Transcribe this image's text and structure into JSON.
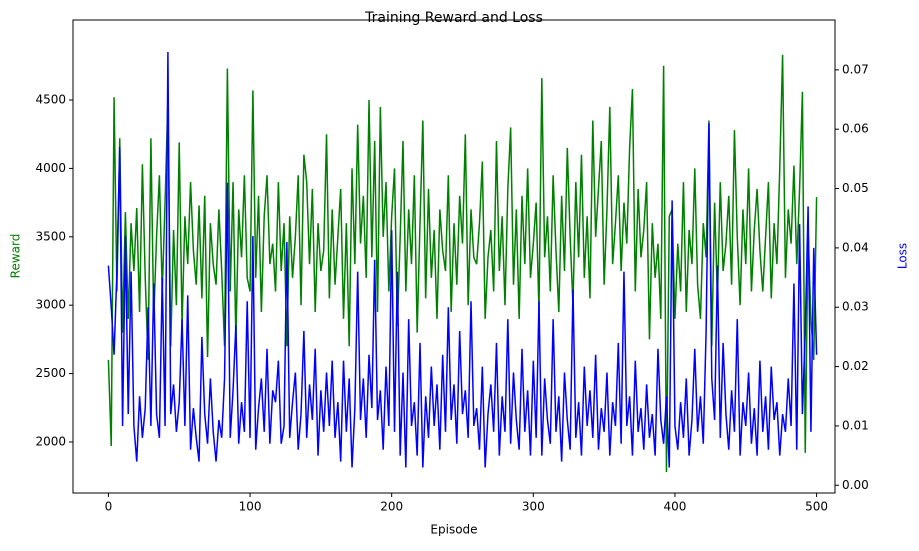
{
  "chart_data": {
    "type": "line",
    "title": "Training Reward and Loss",
    "xlabel": "Episode",
    "xlim": [
      -25,
      513
    ],
    "xticks": [
      0,
      100,
      200,
      300,
      400,
      500
    ],
    "ylim": [
      1627,
      5085
    ],
    "yticks": [
      2000,
      2500,
      3000,
      3500,
      4000,
      4500
    ],
    "y2lim": [
      -0.0013,
      0.0784
    ],
    "y2ticks": [
      {
        "value": 0,
        "label": "0.00"
      },
      {
        "value": 0.01,
        "label": "0.01"
      },
      {
        "value": 0.02,
        "label": "0.02"
      },
      {
        "value": 0.03,
        "label": "0.03"
      },
      {
        "value": 0.04,
        "label": "0.04"
      },
      {
        "value": 0.05,
        "label": "0.05"
      },
      {
        "value": 0.06,
        "label": "0.06"
      },
      {
        "value": 0.07,
        "label": "0.07"
      }
    ],
    "x": [
      0,
      2,
      4,
      6,
      8,
      10,
      12,
      14,
      16,
      18,
      20,
      22,
      24,
      26,
      28,
      30,
      32,
      34,
      36,
      38,
      40,
      42,
      44,
      46,
      48,
      50,
      52,
      54,
      56,
      58,
      60,
      62,
      64,
      66,
      68,
      70,
      72,
      74,
      76,
      78,
      80,
      82,
      84,
      86,
      88,
      90,
      92,
      94,
      96,
      98,
      100,
      102,
      104,
      106,
      108,
      110,
      112,
      114,
      116,
      118,
      120,
      122,
      124,
      126,
      128,
      130,
      132,
      134,
      136,
      138,
      140,
      142,
      144,
      146,
      148,
      150,
      152,
      154,
      156,
      158,
      160,
      162,
      164,
      166,
      168,
      170,
      172,
      174,
      176,
      178,
      180,
      182,
      184,
      186,
      188,
      190,
      192,
      194,
      196,
      198,
      200,
      202,
      204,
      206,
      208,
      210,
      212,
      214,
      216,
      218,
      220,
      222,
      224,
      226,
      228,
      230,
      232,
      234,
      236,
      238,
      240,
      242,
      244,
      246,
      248,
      250,
      252,
      254,
      256,
      258,
      260,
      262,
      264,
      266,
      268,
      270,
      272,
      274,
      276,
      278,
      280,
      282,
      284,
      286,
      288,
      290,
      292,
      294,
      296,
      298,
      300,
      302,
      304,
      306,
      308,
      310,
      312,
      314,
      316,
      318,
      320,
      322,
      324,
      326,
      328,
      330,
      332,
      334,
      336,
      338,
      340,
      342,
      344,
      346,
      348,
      350,
      352,
      354,
      356,
      358,
      360,
      362,
      364,
      366,
      368,
      370,
      372,
      374,
      376,
      378,
      380,
      382,
      384,
      386,
      388,
      390,
      392,
      394,
      396,
      398,
      400,
      402,
      404,
      406,
      408,
      410,
      412,
      414,
      416,
      418,
      420,
      422,
      424,
      426,
      428,
      430,
      432,
      434,
      436,
      438,
      440,
      442,
      444,
      446,
      448,
      450,
      452,
      454,
      456,
      458,
      460,
      462,
      464,
      466,
      468,
      470,
      472,
      474,
      476,
      478,
      480,
      482,
      484,
      486,
      488,
      490,
      492,
      494,
      496,
      498,
      500
    ],
    "series": [
      {
        "name": "Reward",
        "color": "#008000",
        "values": [
          2600,
          1970,
          4520,
          3100,
          4220,
          2800,
          3680,
          2900,
          3600,
          3250,
          3710,
          2950,
          4030,
          3200,
          2600,
          4220,
          2900,
          3500,
          3950,
          3100,
          3750,
          4500,
          2700,
          3550,
          3000,
          4190,
          2850,
          3650,
          3300,
          3900,
          3400,
          3150,
          3730,
          3050,
          3800,
          2620,
          3600,
          3300,
          3150,
          3700,
          3250,
          2700,
          4730,
          3100,
          3900,
          2750,
          3700,
          3350,
          3950,
          3200,
          3100,
          4570,
          3200,
          3800,
          2950,
          3650,
          3950,
          3300,
          3450,
          3100,
          3900,
          3250,
          3600,
          2700,
          3650,
          3200,
          3500,
          3950,
          3000,
          4100,
          3900,
          3300,
          3850,
          2950,
          3600,
          3250,
          3400,
          4250,
          3050,
          3700,
          3150,
          3500,
          3850,
          2900,
          3600,
          2700,
          4000,
          3300,
          4320,
          3450,
          3800,
          3200,
          4500,
          3350,
          4200,
          2950,
          4450,
          3500,
          3900,
          3100,
          3650,
          4000,
          2850,
          3500,
          4200,
          3100,
          3700,
          3300,
          3950,
          2800,
          3600,
          4350,
          3050,
          3850,
          3200,
          3550,
          2900,
          3700,
          3400,
          3250,
          3950,
          2950,
          3600,
          3150,
          3800,
          3450,
          4250,
          3000,
          3700,
          3350,
          3300,
          3600,
          4050,
          2900,
          3350,
          3550,
          3100,
          4200,
          3250,
          3650,
          3000,
          3850,
          4300,
          3150,
          3700,
          2900,
          3800,
          3300,
          4000,
          3200,
          3450,
          3750,
          2950,
          4660,
          3350,
          3650,
          3100,
          3950,
          3400,
          2950,
          3800,
          3250,
          4150,
          3500,
          3000,
          3900,
          3350,
          4100,
          3200,
          3650,
          3050,
          4350,
          3500,
          3850,
          4200,
          3150,
          3700,
          4450,
          3300,
          3600,
          3950,
          3250,
          3750,
          3450,
          4150,
          4580,
          3100,
          3850,
          3350,
          3550,
          3900,
          2750,
          3600,
          3200,
          3450,
          2900,
          4750,
          1780,
          3650,
          3700,
          2900,
          3450,
          3100,
          3900,
          2950,
          3550,
          3300,
          4000,
          3150,
          2900,
          3600,
          3350,
          4350,
          2700,
          3750,
          3050,
          3900,
          3250,
          3450,
          3800,
          3150,
          4280,
          3500,
          3000,
          3700,
          3300,
          4000,
          3100,
          3550,
          3850,
          3400,
          3100,
          3500,
          3900,
          3050,
          3600,
          3300,
          4000,
          4830,
          3200,
          3700,
          3450,
          4020,
          3300,
          3850,
          4560,
          1920,
          3550,
          2900,
          2600,
          3790
        ]
      },
      {
        "name": "Loss",
        "color": "#0000ff",
        "axis": "y2",
        "values": [
          0.037,
          0.03,
          0.022,
          0.036,
          0.057,
          0.01,
          0.042,
          0.012,
          0.036,
          0.01,
          0.004,
          0.015,
          0.008,
          0.013,
          0.03,
          0.01,
          0.034,
          0.012,
          0.008,
          0.035,
          0.01,
          0.073,
          0.012,
          0.017,
          0.009,
          0.014,
          0.028,
          0.01,
          0.032,
          0.006,
          0.013,
          0.008,
          0.004,
          0.025,
          0.012,
          0.007,
          0.018,
          0.009,
          0.004,
          0.011,
          0.008,
          0.018,
          0.051,
          0.008,
          0.016,
          0.027,
          0.007,
          0.014,
          0.009,
          0.031,
          0.008,
          0.042,
          0.006,
          0.013,
          0.018,
          0.009,
          0.023,
          0.007,
          0.016,
          0.014,
          0.021,
          0.007,
          0.01,
          0.041,
          0.008,
          0.014,
          0.019,
          0.006,
          0.012,
          0.026,
          0.008,
          0.017,
          0.011,
          0.023,
          0.005,
          0.016,
          0.009,
          0.019,
          0.01,
          0.021,
          0.008,
          0.014,
          0.004,
          0.021,
          0.009,
          0.018,
          0.003,
          0.013,
          0.036,
          0.011,
          0.018,
          0.008,
          0.022,
          0.013,
          0.038,
          0.011,
          0.016,
          0.006,
          0.02,
          0.01,
          0.043,
          0.009,
          0.036,
          0.005,
          0.019,
          0.003,
          0.028,
          0.01,
          0.014,
          0.005,
          0.024,
          0.003,
          0.015,
          0.008,
          0.02,
          0.01,
          0.017,
          0.006,
          0.022,
          0.009,
          0.03,
          0.011,
          0.017,
          0.007,
          0.026,
          0.012,
          0.016,
          0.008,
          0.031,
          0.01,
          0.013,
          0.006,
          0.02,
          0.003,
          0.012,
          0.017,
          0.009,
          0.024,
          0.005,
          0.015,
          0.009,
          0.028,
          0.007,
          0.019,
          0.011,
          0.006,
          0.023,
          0.009,
          0.016,
          0.005,
          0.021,
          0.008,
          0.031,
          0.005,
          0.018,
          0.011,
          0.007,
          0.028,
          0.009,
          0.015,
          0.004,
          0.019,
          0.011,
          0.006,
          0.033,
          0.008,
          0.014,
          0.005,
          0.02,
          0.01,
          0.016,
          0.008,
          0.022,
          0.006,
          0.013,
          0.009,
          0.019,
          0.005,
          0.014,
          0.01,
          0.024,
          0.007,
          0.036,
          0.01,
          0.015,
          0.005,
          0.021,
          0.009,
          0.013,
          0.006,
          0.017,
          0.008,
          0.012,
          0.005,
          0.023,
          0.011,
          0.007,
          0.015,
          0.003,
          0.048,
          0.01,
          0.006,
          0.014,
          0.008,
          0.018,
          0.005,
          0.011,
          0.023,
          0.009,
          0.015,
          0.007,
          0.026,
          0.061,
          0.018,
          0.011,
          0.037,
          0.008,
          0.024,
          0.012,
          0.006,
          0.016,
          0.009,
          0.028,
          0.005,
          0.014,
          0.01,
          0.019,
          0.007,
          0.013,
          0.005,
          0.021,
          0.009,
          0.015,
          0.006,
          0.02,
          0.011,
          0.014,
          0.005,
          0.012,
          0.009,
          0.018,
          0.01,
          0.034,
          0.006,
          0.044,
          0.012,
          0.026,
          0.047,
          0.009,
          0.04,
          0.022
        ]
      }
    ]
  }
}
